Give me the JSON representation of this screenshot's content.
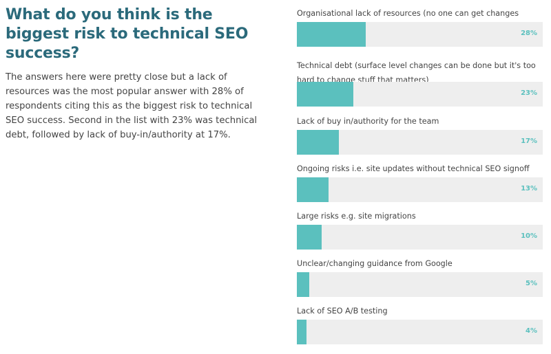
{
  "title": "What do you think is the biggest risk to technical SEO success?",
  "description": "The answers here were pretty close but a lack of resources was the most popular answer with 28% of respondents citing this as the biggest risk to technical SEO success. Second in the list with 23% was technical debt, followed by lack of buy-in/authority at 17%.",
  "colors": {
    "bar": "#5bc0be",
    "track": "#eeeeee",
    "title": "#2b6a7b"
  },
  "chart_data": {
    "type": "bar",
    "orientation": "horizontal",
    "title": "What do you think is the biggest risk to technical SEO success?",
    "categories": [
      "Organisational lack of resources (no one can get changes made)",
      "Technical debt (surface level changes can be done but it's too hard to change stuff that matters)",
      "Lack of buy in/authority for the team",
      "Ongoing risks i.e. site updates without technical SEO signoff",
      "Large risks e.g. site migrations",
      "Unclear/changing guidance from Google",
      "Lack of SEO A/B testing"
    ],
    "values": [
      28,
      23,
      17,
      13,
      10,
      5,
      4
    ],
    "value_labels": [
      "28%",
      "23%",
      "17%",
      "13%",
      "10%",
      "5%",
      "4%"
    ],
    "xlim": [
      0,
      100
    ],
    "grid": false
  }
}
